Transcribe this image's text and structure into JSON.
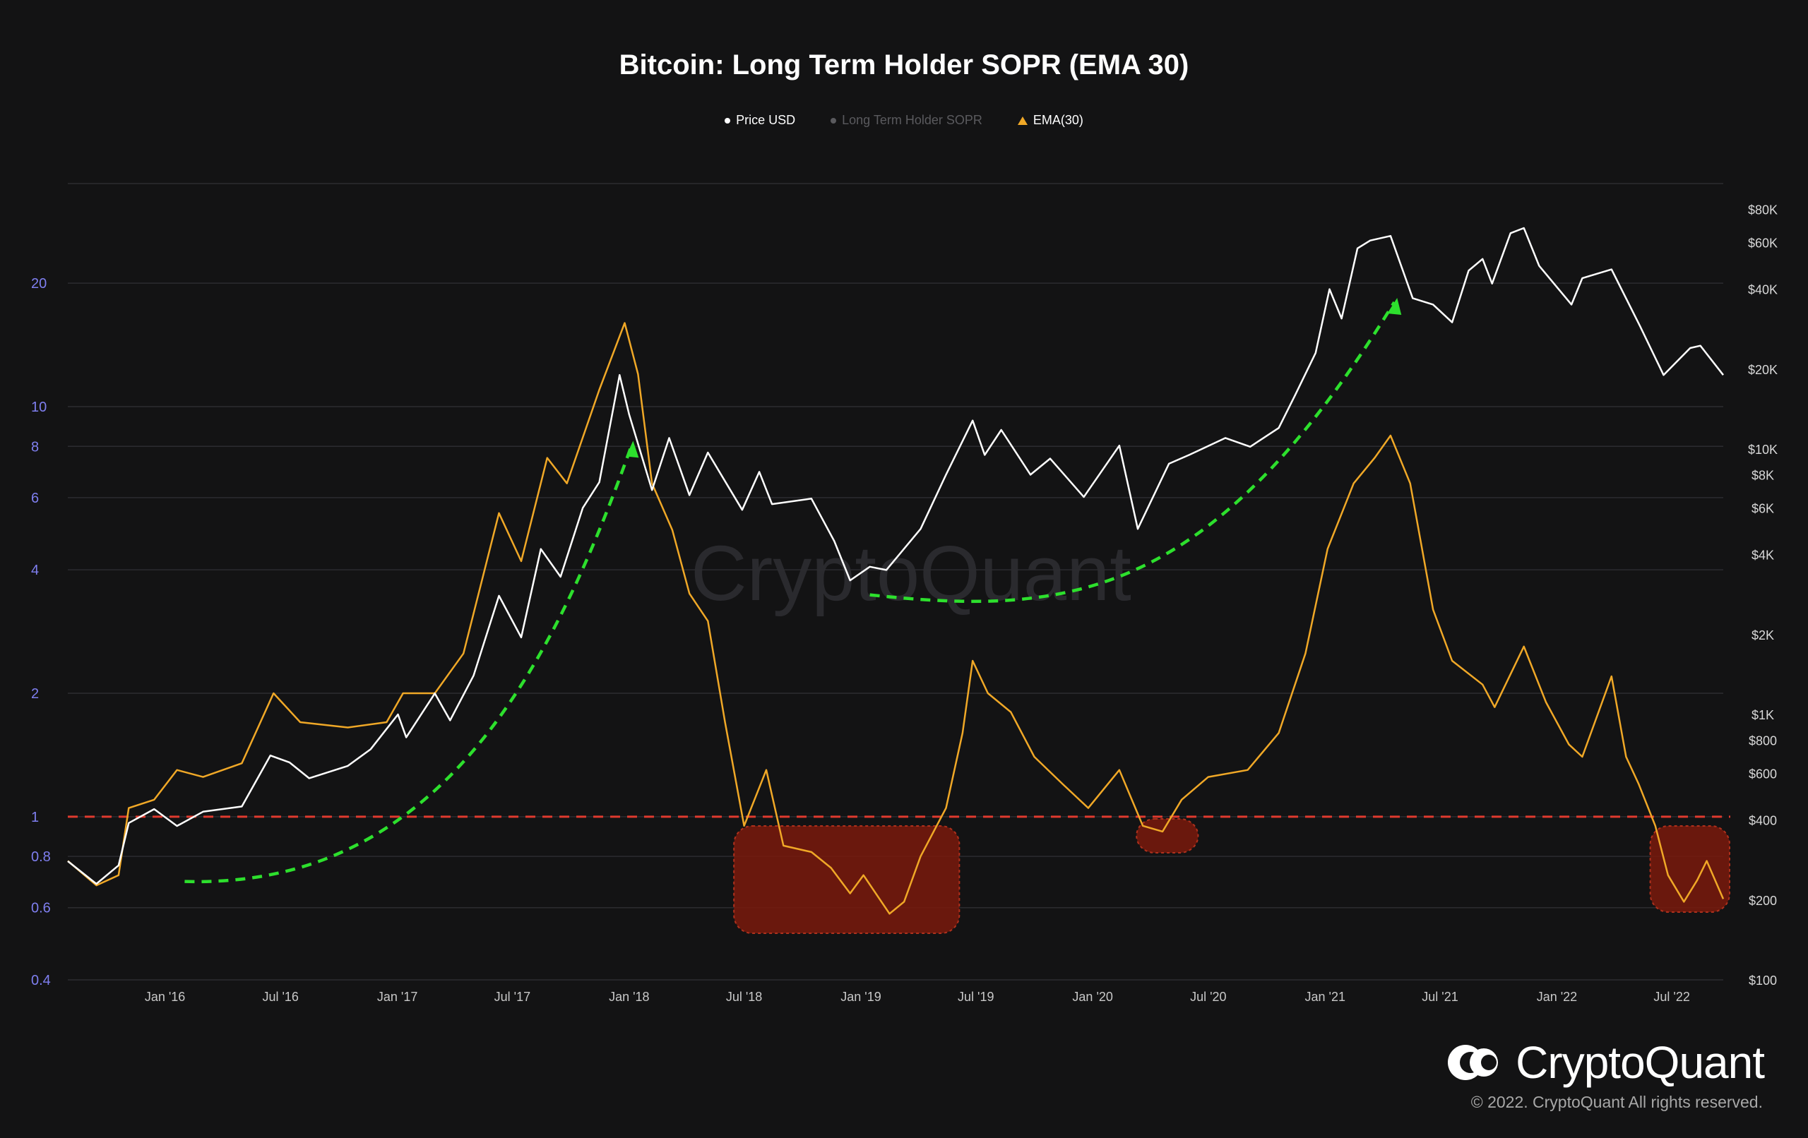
{
  "title": "Bitcoin: Long Term Holder SOPR (EMA 30)",
  "legend": [
    {
      "label": "Price USD",
      "color": "#ffffff",
      "marker": "dot"
    },
    {
      "label": "Long Term Holder SOPR",
      "color": "#5a5a5e",
      "marker": "dot"
    },
    {
      "label": "EMA(30)",
      "color": "#f0a827",
      "marker": "triangle"
    }
  ],
  "watermark": "CryptoQuant",
  "brand": {
    "name": "CryptoQuant",
    "copyright": "© 2022. CryptoQuant All rights reserved."
  },
  "colors": {
    "background": "#131314",
    "price": "#ffffff",
    "ema": "#f0a827",
    "left_axis": "#7f7ff0",
    "threshold": "#e03a2e",
    "trend_arrow": "#2de02d",
    "highlight": "#7a1a0c"
  },
  "chart_data": {
    "type": "line",
    "x_ticks": [
      "Jan '16",
      "Jul '16",
      "Jan '17",
      "Jul '17",
      "Jan '18",
      "Jul '18",
      "Jan '19",
      "Jul '19",
      "Jan '20",
      "Jul '20",
      "Jan '21",
      "Jul '21",
      "Jan '22",
      "Jul '22"
    ],
    "x_range": [
      "2015-08-01",
      "2022-09-20"
    ],
    "y_left": {
      "scale": "log",
      "range": [
        0.4,
        35
      ],
      "ticks": [
        "0.4",
        "0.6",
        "0.8",
        "1",
        "2",
        "4",
        "6",
        "8",
        "10",
        "20"
      ]
    },
    "y_right": {
      "scale": "log",
      "range": [
        100,
        100000
      ],
      "ticks": [
        "$100",
        "$200",
        "$400",
        "$600",
        "$800",
        "$1K",
        "$2K",
        "$4K",
        "$6K",
        "$8K",
        "$10K",
        "$20K",
        "$40K",
        "$60K",
        "$80K"
      ]
    },
    "threshold": {
      "value": 1,
      "axis": "left",
      "style": "dashed"
    },
    "grid": true,
    "series": [
      {
        "name": "Price USD",
        "axis": "right",
        "points": [
          [
            "2015-08-01",
            280
          ],
          [
            "2015-09-15",
            230
          ],
          [
            "2015-10-20",
            270
          ],
          [
            "2015-11-05",
            390
          ],
          [
            "2015-12-15",
            440
          ],
          [
            "2016-01-20",
            380
          ],
          [
            "2016-03-01",
            430
          ],
          [
            "2016-05-01",
            450
          ],
          [
            "2016-06-15",
            700
          ],
          [
            "2016-07-15",
            660
          ],
          [
            "2016-08-15",
            575
          ],
          [
            "2016-10-15",
            640
          ],
          [
            "2016-11-20",
            740
          ],
          [
            "2017-01-02",
            1000
          ],
          [
            "2017-01-15",
            820
          ],
          [
            "2017-03-01",
            1200
          ],
          [
            "2017-03-25",
            950
          ],
          [
            "2017-05-01",
            1400
          ],
          [
            "2017-06-10",
            2800
          ],
          [
            "2017-07-15",
            1950
          ],
          [
            "2017-08-15",
            4200
          ],
          [
            "2017-09-15",
            3300
          ],
          [
            "2017-10-20",
            6000
          ],
          [
            "2017-11-15",
            7500
          ],
          [
            "2017-12-17",
            19000
          ],
          [
            "2018-01-01",
            13500
          ],
          [
            "2018-02-06",
            7000
          ],
          [
            "2018-03-05",
            11000
          ],
          [
            "2018-04-06",
            6700
          ],
          [
            "2018-05-05",
            9700
          ],
          [
            "2018-06-28",
            5900
          ],
          [
            "2018-07-25",
            8200
          ],
          [
            "2018-08-14",
            6200
          ],
          [
            "2018-10-15",
            6500
          ],
          [
            "2018-11-20",
            4500
          ],
          [
            "2018-12-15",
            3200
          ],
          [
            "2019-01-15",
            3600
          ],
          [
            "2019-02-10",
            3500
          ],
          [
            "2019-04-05",
            5000
          ],
          [
            "2019-05-15",
            8000
          ],
          [
            "2019-06-26",
            12800
          ],
          [
            "2019-07-15",
            9500
          ],
          [
            "2019-08-10",
            11800
          ],
          [
            "2019-09-25",
            8000
          ],
          [
            "2019-10-26",
            9200
          ],
          [
            "2019-12-18",
            6600
          ],
          [
            "2020-02-12",
            10300
          ],
          [
            "2020-03-12",
            5000
          ],
          [
            "2020-04-30",
            8800
          ],
          [
            "2020-06-01",
            9500
          ],
          [
            "2020-07-28",
            11000
          ],
          [
            "2020-09-05",
            10200
          ],
          [
            "2020-10-20",
            12000
          ],
          [
            "2020-11-15",
            16000
          ],
          [
            "2020-12-17",
            23000
          ],
          [
            "2021-01-08",
            40000
          ],
          [
            "2021-01-27",
            31000
          ],
          [
            "2021-02-21",
            57000
          ],
          [
            "2021-03-13",
            61000
          ],
          [
            "2021-04-14",
            63500
          ],
          [
            "2021-05-19",
            37000
          ],
          [
            "2021-06-20",
            35000
          ],
          [
            "2021-07-20",
            30000
          ],
          [
            "2021-08-15",
            47000
          ],
          [
            "2021-09-06",
            52000
          ],
          [
            "2021-09-21",
            42000
          ],
          [
            "2021-10-20",
            65000
          ],
          [
            "2021-11-10",
            68000
          ],
          [
            "2021-12-04",
            49000
          ],
          [
            "2022-01-24",
            35000
          ],
          [
            "2022-02-10",
            44000
          ],
          [
            "2022-03-28",
            47500
          ],
          [
            "2022-05-12",
            29000
          ],
          [
            "2022-06-18",
            19000
          ],
          [
            "2022-07-30",
            24000
          ],
          [
            "2022-08-15",
            24500
          ],
          [
            "2022-09-20",
            19000
          ]
        ]
      },
      {
        "name": "EMA(30)",
        "axis": "left",
        "points": [
          [
            "2015-08-01",
            0.78
          ],
          [
            "2015-09-15",
            0.68
          ],
          [
            "2015-10-20",
            0.72
          ],
          [
            "2015-11-05",
            1.05
          ],
          [
            "2015-12-15",
            1.1
          ],
          [
            "2016-01-20",
            1.3
          ],
          [
            "2016-03-01",
            1.25
          ],
          [
            "2016-05-01",
            1.35
          ],
          [
            "2016-06-20",
            2.0
          ],
          [
            "2016-08-01",
            1.7
          ],
          [
            "2016-10-15",
            1.65
          ],
          [
            "2016-12-15",
            1.7
          ],
          [
            "2017-01-10",
            2.0
          ],
          [
            "2017-03-01",
            2.0
          ],
          [
            "2017-04-15",
            2.5
          ],
          [
            "2017-06-10",
            5.5
          ],
          [
            "2017-07-15",
            4.2
          ],
          [
            "2017-08-25",
            7.5
          ],
          [
            "2017-09-25",
            6.5
          ],
          [
            "2017-11-15",
            11.0
          ],
          [
            "2017-12-25",
            16.0
          ],
          [
            "2018-01-15",
            12.0
          ],
          [
            "2018-02-06",
            6.5
          ],
          [
            "2018-03-10",
            5.0
          ],
          [
            "2018-04-06",
            3.5
          ],
          [
            "2018-05-05",
            3.0
          ],
          [
            "2018-06-01",
            1.7
          ],
          [
            "2018-07-01",
            0.95
          ],
          [
            "2018-08-05",
            1.3
          ],
          [
            "2018-09-01",
            0.85
          ],
          [
            "2018-10-15",
            0.82
          ],
          [
            "2018-11-15",
            0.75
          ],
          [
            "2018-12-15",
            0.65
          ],
          [
            "2019-01-05",
            0.72
          ],
          [
            "2019-02-15",
            0.58
          ],
          [
            "2019-03-10",
            0.62
          ],
          [
            "2019-04-05",
            0.8
          ],
          [
            "2019-05-15",
            1.05
          ],
          [
            "2019-06-10",
            1.6
          ],
          [
            "2019-06-26",
            2.4
          ],
          [
            "2019-07-20",
            2.0
          ],
          [
            "2019-08-25",
            1.8
          ],
          [
            "2019-10-01",
            1.4
          ],
          [
            "2019-11-15",
            1.2
          ],
          [
            "2019-12-25",
            1.05
          ],
          [
            "2020-02-12",
            1.3
          ],
          [
            "2020-03-20",
            0.95
          ],
          [
            "2020-04-20",
            0.92
          ],
          [
            "2020-05-20",
            1.1
          ],
          [
            "2020-07-01",
            1.25
          ],
          [
            "2020-09-01",
            1.3
          ],
          [
            "2020-10-20",
            1.6
          ],
          [
            "2020-12-01",
            2.5
          ],
          [
            "2021-01-05",
            4.5
          ],
          [
            "2021-02-15",
            6.5
          ],
          [
            "2021-03-20",
            7.5
          ],
          [
            "2021-04-14",
            8.5
          ],
          [
            "2021-05-15",
            6.5
          ],
          [
            "2021-06-20",
            3.2
          ],
          [
            "2021-07-20",
            2.4
          ],
          [
            "2021-09-06",
            2.1
          ],
          [
            "2021-09-25",
            1.85
          ],
          [
            "2021-11-10",
            2.6
          ],
          [
            "2021-12-15",
            1.9
          ],
          [
            "2022-01-20",
            1.5
          ],
          [
            "2022-02-10",
            1.4
          ],
          [
            "2022-03-28",
            2.2
          ],
          [
            "2022-04-20",
            1.4
          ],
          [
            "2022-05-10",
            1.2
          ],
          [
            "2022-06-05",
            0.95
          ],
          [
            "2022-06-25",
            0.72
          ],
          [
            "2022-07-20",
            0.62
          ],
          [
            "2022-08-10",
            0.7
          ],
          [
            "2022-08-25",
            0.78
          ],
          [
            "2022-09-20",
            0.63
          ]
        ]
      }
    ],
    "highlight_periods": [
      {
        "start": "2018-06-15",
        "end": "2019-06-05"
      },
      {
        "start": "2020-03-10",
        "end": "2020-06-15"
      },
      {
        "start": "2022-05-28",
        "end": "2022-09-30"
      }
    ],
    "trend_arrows": [
      {
        "from": [
          "2016-02-01",
          300
        ],
        "to": [
          "2018-01-05",
          11000
        ],
        "axis": "right"
      },
      {
        "from": [
          "2019-01-15",
          3000
        ],
        "to": [
          "2021-04-20",
          38000
        ],
        "axis": "right"
      }
    ]
  }
}
